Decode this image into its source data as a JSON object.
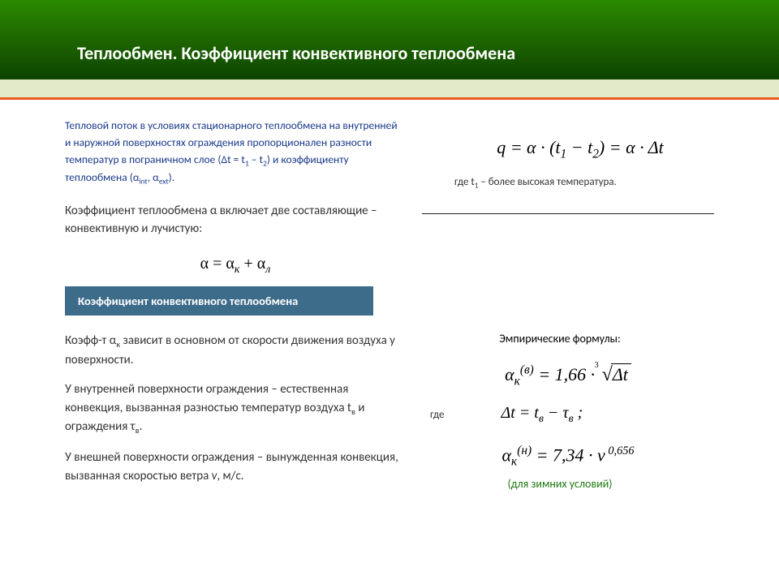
{
  "header": {
    "title": "Теплообмен. Коэффициент конвективного теплообмена",
    "band_gradient": [
      "#2a8a00",
      "#1e6600",
      "#0d4400"
    ],
    "accent_color": "#e3eac9",
    "underline_color": "#e85d1f"
  },
  "intro": {
    "text_html": "Тепловой поток в условиях стационарного теплообмена на внутренней и наружной поверхностях ограждения пропорционален разности температур в пограничном слое (Δt = t<sub>1</sub> – t<sub>2</sub>) и коэффициенту теплообмена (α<sub>int</sub>, α<sub>ext</sub>).",
    "color": "#1a3a8a",
    "fontsize": 13.5
  },
  "equation_q": {
    "html": "q = α · (t<sub>1</sub> − t<sub>2</sub>) = α · Δt",
    "fontsize": 22
  },
  "note_t1": "где t<sub>1</sub> – более высокая температура.",
  "alpha_components": {
    "text": "Коэффициент теплообмена α  включает две составляющие – конвективную и лучистую:",
    "formula_html": "α = α<sub><i>к</i></sub> + α<sub><i>л</i></sub>"
  },
  "section_bar": {
    "label": "Коэффициент конвективного теплообмена",
    "bg": "#3d6b8a"
  },
  "para1": "Коэфф-т α<sub>к</sub> зависит в основном от скорости движения воздуха у поверхности.",
  "para2": "У внутренней поверхности ограждения – естественная конвекция, вызванная разностью температур воздуха t<sub>в</sub> и ограждения τ<sub>в</sub>.",
  "para3": "У внешней поверхности ограждения – вынужденная конвекция, вызванная скоростью ветра <i>v</i>, м/с.",
  "empirical": {
    "title": "Эмпирические формулы:",
    "f1_prefix": "α<sub>к</sub><sup>(в)</sup> = 1,66 · ",
    "f1_root_idx": "3",
    "f1_radicand": "Δt",
    "where": "где",
    "dt_html": "Δt = t<sub>в</sub> − τ<sub>в</sub> ;",
    "f2_html": "α<sub>к</sub><sup>(н)</sup> = 7,34 · v<sup style='font-size:0.65em'> 0,656</sup>",
    "note": "(для зимних условий)",
    "note_color": "#1e7a10"
  }
}
